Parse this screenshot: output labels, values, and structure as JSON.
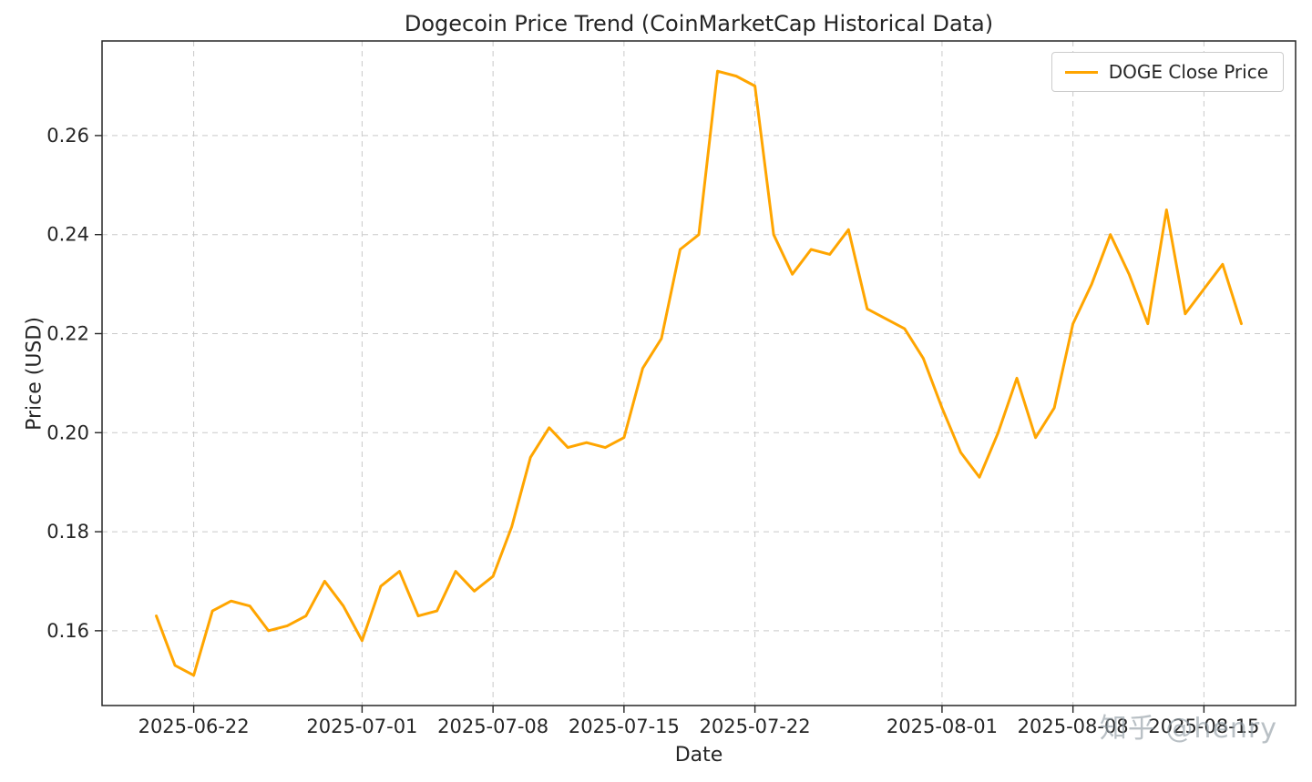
{
  "watermark": "知乎 @henry",
  "chart_data": {
    "type": "line",
    "title": "Dogecoin Price Trend (CoinMarketCap Historical Data)",
    "xlabel": "Date",
    "ylabel": "Price (USD)",
    "grid": true,
    "grid_style": "dashed",
    "legend_position": "upper right",
    "line_color": "#FFA500",
    "ylim": [
      0.1449,
      0.2791
    ],
    "yticks": [
      0.16,
      0.18,
      0.2,
      0.22,
      0.24,
      0.26
    ],
    "xticks": [
      "2025-06-22",
      "2025-07-01",
      "2025-07-08",
      "2025-07-15",
      "2025-07-22",
      "2025-08-01",
      "2025-08-08",
      "2025-08-15"
    ],
    "x": [
      "2025-06-20",
      "2025-06-21",
      "2025-06-22",
      "2025-06-23",
      "2025-06-24",
      "2025-06-25",
      "2025-06-26",
      "2025-06-27",
      "2025-06-28",
      "2025-06-29",
      "2025-06-30",
      "2025-07-01",
      "2025-07-02",
      "2025-07-03",
      "2025-07-04",
      "2025-07-05",
      "2025-07-06",
      "2025-07-07",
      "2025-07-08",
      "2025-07-09",
      "2025-07-10",
      "2025-07-11",
      "2025-07-12",
      "2025-07-13",
      "2025-07-14",
      "2025-07-15",
      "2025-07-16",
      "2025-07-17",
      "2025-07-18",
      "2025-07-19",
      "2025-07-20",
      "2025-07-21",
      "2025-07-22",
      "2025-07-23",
      "2025-07-24",
      "2025-07-25",
      "2025-07-26",
      "2025-07-27",
      "2025-07-28",
      "2025-07-29",
      "2025-07-30",
      "2025-07-31",
      "2025-08-01",
      "2025-08-02",
      "2025-08-03",
      "2025-08-04",
      "2025-08-05",
      "2025-08-06",
      "2025-08-07",
      "2025-08-08",
      "2025-08-09",
      "2025-08-10",
      "2025-08-11",
      "2025-08-12",
      "2025-08-13",
      "2025-08-14",
      "2025-08-15",
      "2025-08-16",
      "2025-08-17"
    ],
    "series": [
      {
        "name": "DOGE Close Price",
        "color": "#FFA500",
        "values": [
          0.163,
          0.153,
          0.151,
          0.164,
          0.166,
          0.165,
          0.16,
          0.161,
          0.163,
          0.17,
          0.165,
          0.158,
          0.169,
          0.172,
          0.163,
          0.164,
          0.172,
          0.168,
          0.171,
          0.181,
          0.195,
          0.201,
          0.197,
          0.198,
          0.197,
          0.199,
          0.213,
          0.219,
          0.237,
          0.24,
          0.273,
          0.272,
          0.27,
          0.24,
          0.232,
          0.237,
          0.236,
          0.241,
          0.225,
          0.223,
          0.221,
          0.215,
          0.205,
          0.196,
          0.191,
          0.2,
          0.211,
          0.199,
          0.205,
          0.222,
          0.23,
          0.24,
          0.232,
          0.222,
          0.245,
          0.224,
          0.229,
          0.234,
          0.222
        ]
      }
    ]
  }
}
